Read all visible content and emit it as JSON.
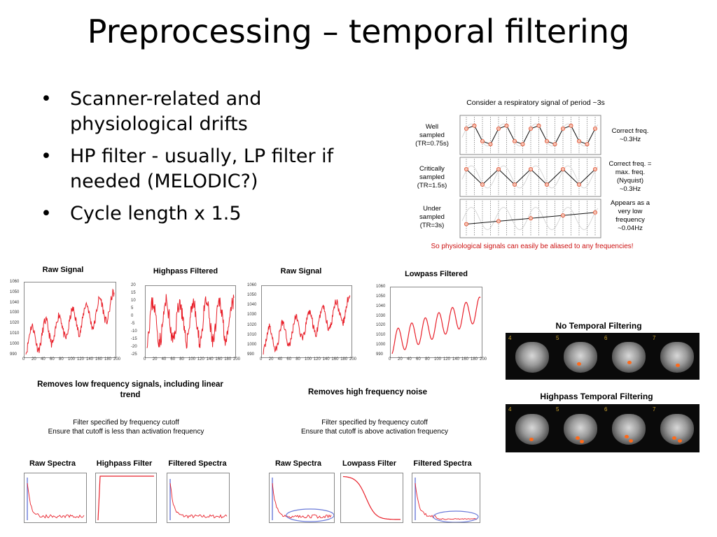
{
  "slide": {
    "title": "Preprocessing – temporal filtering",
    "bullets": [
      "Scanner-related and physiological drifts",
      "HP filter - usually, LP filter if needed (MELODIC?)",
      "Cycle length x 1.5"
    ]
  },
  "sampling_figure": {
    "header": "Consider a respiratory signal of period ~3s",
    "rows": [
      {
        "label_lines": [
          "Well",
          "sampled",
          "(TR=0.75s)"
        ],
        "note_lines": [
          "Correct freq.",
          "~0.3Hz"
        ]
      },
      {
        "label_lines": [
          "Critically",
          "sampled",
          "(TR=1.5s)"
        ],
        "note_lines": [
          "Correct freq. =",
          "max. freq.",
          "(Nyquist)",
          "~0.3Hz"
        ]
      },
      {
        "label_lines": [
          "Under",
          "sampled",
          "(TR=3s)"
        ],
        "note_lines": [
          "Appears as a",
          "very low",
          "frequency",
          "~0.04Hz"
        ]
      }
    ],
    "footer": "So physiological signals can easily be aliased to any frequencies!",
    "colors": {
      "footer": "#cc1111",
      "samples": "#e05030"
    }
  },
  "signal_plots": [
    {
      "title": "Raw Signal",
      "yticks": [
        "1060",
        "1050",
        "1040",
        "1030",
        "1020",
        "1010",
        "1000",
        "990"
      ]
    },
    {
      "title": "Highpass Filtered",
      "yticks": [
        "20",
        "15",
        "10",
        "5",
        "0",
        "-5",
        "-10",
        "-15",
        "-20",
        "-25"
      ]
    },
    {
      "title": "Raw Signal",
      "yticks": [
        "1060",
        "1050",
        "1040",
        "1030",
        "1020",
        "1010",
        "1000",
        "990"
      ]
    },
    {
      "title": "Lowpass Filtered",
      "yticks": [
        "1060",
        "1050",
        "1040",
        "1030",
        "1020",
        "1010",
        "1000",
        "990"
      ]
    }
  ],
  "signal_xticks": [
    "0",
    "20",
    "40",
    "60",
    "80",
    "100",
    "120",
    "140",
    "160",
    "180",
    "200"
  ],
  "captions": {
    "highpass_main_lines": [
      "Removes low frequency signals, including linear",
      "trend"
    ],
    "lowpass_main": "Removes high frequency noise",
    "highpass_sub_lines": [
      "Filter specified by frequency cutoff",
      "Ensure that cutoff is less than activation frequency"
    ],
    "lowpass_sub_lines": [
      "Filter specified by frequency cutoff",
      "Ensure that cutoff is above activation frequency"
    ]
  },
  "spectra_plots": [
    {
      "title": "Raw Spectra"
    },
    {
      "title": "Highpass Filter"
    },
    {
      "title": "Filtered Spectra"
    },
    {
      "title": "Raw Spectra"
    },
    {
      "title": "Lowpass Filter"
    },
    {
      "title": "Filtered Spectra"
    }
  ],
  "mri_panels": {
    "no_filter_title": "No Temporal Filtering",
    "highpass_title": "Highpass Temporal Filtering",
    "slice_numbers": [
      "4",
      "5",
      "6",
      "7"
    ],
    "colors": {
      "activation": "#ff6a1a"
    }
  },
  "colors": {
    "signal": "#e8202a",
    "highlight": "#6a7ad8"
  }
}
